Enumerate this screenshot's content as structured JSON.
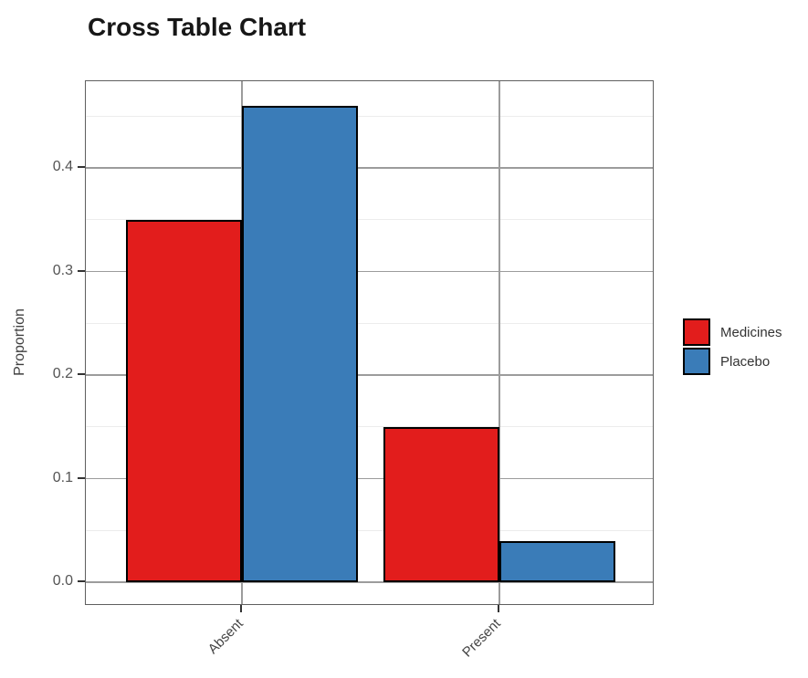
{
  "chart_data": {
    "type": "bar",
    "title": "Cross Table Chart",
    "xlabel": "",
    "ylabel": "Proportion",
    "categories": [
      "Absent",
      "Present"
    ],
    "series": [
      {
        "name": "Medicines",
        "color": "#e21d1c",
        "values": [
          0.35,
          0.15
        ]
      },
      {
        "name": "Placebo",
        "color": "#3a7cb8",
        "values": [
          0.46,
          0.04
        ]
      }
    ],
    "ylim": [
      -0.023,
      0.483
    ],
    "ytick_labels": [
      "0.0",
      "0.1",
      "0.2",
      "0.3",
      "0.4"
    ],
    "ytick_values": [
      0.0,
      0.1,
      0.2,
      0.3,
      0.4
    ],
    "grid": "major-and-minor-horizontal, major-vertical-at-categories",
    "legend_position": "right",
    "bar_outline_color": "#000000"
  },
  "legend": {
    "items": [
      {
        "label": "Medicines",
        "color": "#e21d1c"
      },
      {
        "label": "Placebo",
        "color": "#3a7cb8"
      }
    ]
  }
}
